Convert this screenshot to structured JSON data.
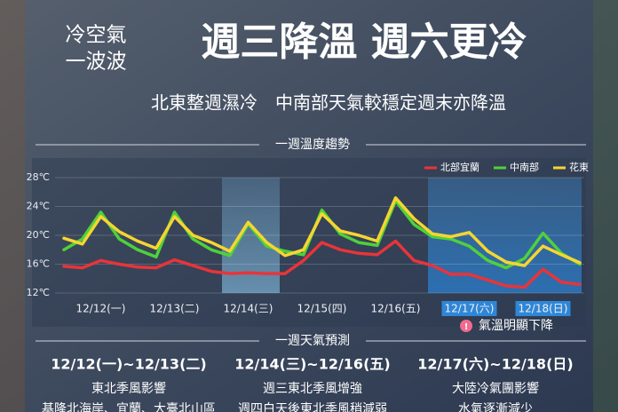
{
  "header": {
    "tag": [
      "冷空氣",
      "一波波"
    ],
    "title": "週三降溫 週六更冷",
    "subtitle": "北東整週濕冷　中南部天氣較穩定週末亦降溫"
  },
  "chart_data": {
    "type": "line",
    "title": "一週溫度趨勢",
    "categories": [
      null,
      null,
      "12/12(一)",
      null,
      null,
      null,
      "12/13(二)",
      null,
      null,
      null,
      "12/14(三)",
      null,
      null,
      null,
      "12/15(四)",
      null,
      null,
      null,
      "12/16(五)",
      null,
      null,
      null,
      "12/17(六)",
      null,
      null,
      null,
      "12/18(日)",
      null,
      null
    ],
    "series": [
      {
        "name": "北部宜蘭",
        "color": "#e8343a",
        "values": [
          15.7,
          15.5,
          16.5,
          16,
          15.6,
          15.5,
          16.6,
          15.8,
          15,
          14.7,
          14.8,
          14.7,
          14.7,
          16.5,
          19,
          18,
          17.5,
          17.3,
          19.2,
          16.5,
          15.8,
          14.6,
          14.6,
          13.8,
          13,
          12.8,
          15.3,
          13.5,
          13.2
        ]
      },
      {
        "name": "中南部",
        "color": "#4fd13a",
        "values": [
          18,
          19.5,
          23.2,
          19.5,
          18,
          17,
          23.2,
          19.5,
          18,
          17.2,
          21.6,
          18.5,
          17.8,
          17.3,
          23.5,
          20.2,
          19,
          18.6,
          24.8,
          21.5,
          19.8,
          19.5,
          18.5,
          16.5,
          15.5,
          16.8,
          20.3,
          17.5,
          16
        ]
      },
      {
        "name": "花東",
        "color": "#f6d531",
        "values": [
          19.6,
          18.8,
          22.6,
          20.5,
          19.2,
          18.2,
          22.6,
          20,
          19,
          17.8,
          21.8,
          19,
          17.2,
          18,
          23,
          20.6,
          20,
          19.2,
          25.2,
          22.3,
          20.2,
          19.8,
          20.4,
          17.8,
          16.3,
          15.8,
          18.5,
          17.3,
          16.2
        ]
      }
    ],
    "ylim": [
      12,
      28
    ],
    "yticks": [
      {
        "value": 12,
        "label": "12℃"
      },
      {
        "value": 16,
        "label": "16℃"
      },
      {
        "value": 20,
        "label": "20℃"
      },
      {
        "value": 24,
        "label": "24℃"
      },
      {
        "value": 28,
        "label": "28℃"
      }
    ],
    "grid": true,
    "legend": "top-right",
    "annotation": {
      "icon": "!",
      "text": "氣溫明顯下降"
    }
  },
  "forecast": {
    "title": "一週天氣預測",
    "columns": [
      {
        "dates": "12/12(一)~12/13(二)",
        "lines": [
          "東北季風影響",
          "基隆北海岸、宜蘭、大臺北山區"
        ]
      },
      {
        "dates": "12/14(三)~12/16(五)",
        "lines": [
          "週三東北季風增強",
          "週四白天後東北季風稍減弱"
        ]
      },
      {
        "dates": "12/17(六)~12/18(日)",
        "lines": [
          "大陸冷氣團影響",
          "水氣逐漸減少"
        ]
      }
    ]
  }
}
